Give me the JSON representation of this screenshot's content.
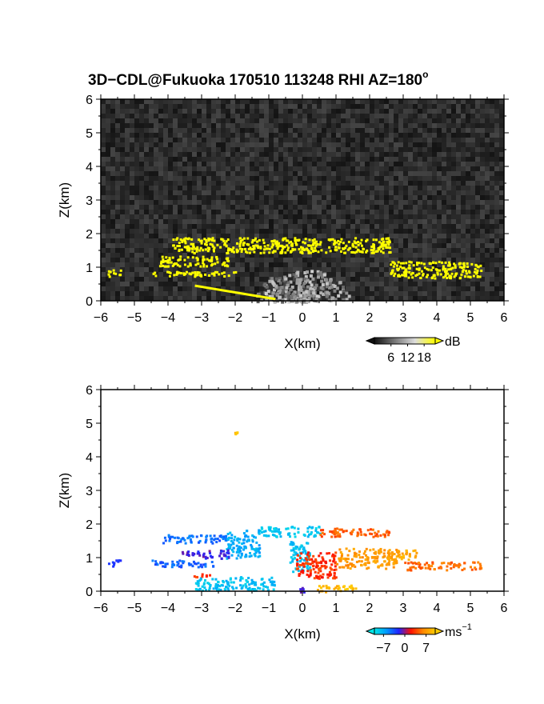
{
  "title": {
    "main": "3D−CDL@Fukuoka 170510 113248 RHI AZ=180",
    "sup": "o"
  },
  "chart_data": [
    {
      "type": "heatmap",
      "panel": "top",
      "field": "intensity",
      "xlabel": "X(km)",
      "ylabel": "Z(km)",
      "xlim": [
        -6,
        6
      ],
      "ylim": [
        0,
        6
      ],
      "xticks": [
        "−6",
        "−5",
        "−4",
        "−3",
        "−2",
        "−1",
        "0",
        "1",
        "2",
        "3",
        "4",
        "5",
        "6"
      ],
      "yticks": [
        "0",
        "1",
        "2",
        "3",
        "4",
        "5",
        "6"
      ],
      "background": "noise",
      "colorbar": {
        "unit": "dB",
        "ticks": [
          "6",
          "12",
          "18"
        ],
        "tick_values": [
          6,
          12,
          18
        ],
        "range": [
          0,
          22
        ],
        "colors": [
          "#111111",
          "#777777",
          "#dddddd",
          "#ffff00"
        ]
      },
      "features": [
        {
          "shape": "band",
          "x0": -4.0,
          "x1": 2.6,
          "z0": 1.45,
          "z1": 1.9,
          "value": 22
        },
        {
          "shape": "band",
          "x0": -4.3,
          "x1": -2.2,
          "z0": 1.05,
          "z1": 1.35,
          "value": 22
        },
        {
          "shape": "band",
          "x0": 2.6,
          "x1": 5.3,
          "z0": 0.7,
          "z1": 1.2,
          "value": 22
        },
        {
          "shape": "band",
          "x0": -5.8,
          "x1": -5.4,
          "z0": 0.75,
          "z1": 0.95,
          "value": 22
        },
        {
          "shape": "band",
          "x0": -4.5,
          "x1": -2.0,
          "z0": 0.75,
          "z1": 0.9,
          "value": 22
        },
        {
          "shape": "line",
          "x0": -3.2,
          "x1": -0.8,
          "z0": 0.45,
          "z1": 0.05,
          "value": 22
        }
      ]
    },
    {
      "type": "heatmap",
      "panel": "bottom",
      "field": "velocity",
      "xlabel": "X(km)",
      "ylabel": "Z(km)",
      "xlim": [
        -6,
        6
      ],
      "ylim": [
        0,
        6
      ],
      "xticks": [
        "−6",
        "−5",
        "−4",
        "−3",
        "−2",
        "−1",
        "0",
        "1",
        "2",
        "3",
        "4",
        "5",
        "6"
      ],
      "yticks": [
        "0",
        "1",
        "2",
        "3",
        "4",
        "5",
        "6"
      ],
      "colorbar": {
        "unit": "ms",
        "unit_sup": "−1",
        "ticks": [
          "−7",
          "0",
          "7"
        ],
        "tick_values": [
          -7,
          0,
          7
        ],
        "range": [
          -10,
          10
        ],
        "colors": [
          "#00e5e5",
          "#0099ff",
          "#2222ff",
          "#ff1100",
          "#ff8800",
          "#ffcc00"
        ]
      },
      "features": [
        {
          "shape": "band",
          "x0": -1.3,
          "x1": 0.5,
          "z0": 1.65,
          "z1": 1.95,
          "value": -8.5
        },
        {
          "shape": "band",
          "x0": 0.5,
          "x1": 2.6,
          "z0": 1.65,
          "z1": 1.9,
          "value": 4.5
        },
        {
          "shape": "band",
          "x0": -4.2,
          "x1": -2.2,
          "z0": 1.45,
          "z1": 1.7,
          "value": -4.5
        },
        {
          "shape": "band",
          "x0": -2.3,
          "x1": -1.3,
          "z0": 1.0,
          "z1": 1.85,
          "value": -7.0
        },
        {
          "shape": "band",
          "x0": -3.6,
          "x1": -2.2,
          "z0": 1.0,
          "z1": 1.25,
          "value": -1.5
        },
        {
          "shape": "band",
          "x0": -4.5,
          "x1": -2.6,
          "z0": 0.75,
          "z1": 0.95,
          "value": -4.0
        },
        {
          "shape": "band",
          "x0": -5.8,
          "x1": -5.4,
          "z0": 0.75,
          "z1": 0.95,
          "value": -2.0
        },
        {
          "shape": "band",
          "x0": -0.4,
          "x1": 0.2,
          "z0": 0.6,
          "z1": 1.5,
          "value": -8.0
        },
        {
          "shape": "band",
          "x0": -0.2,
          "x1": 1.0,
          "z0": 0.4,
          "z1": 1.2,
          "value": 3.0
        },
        {
          "shape": "band",
          "x0": 1.0,
          "x1": 2.8,
          "z0": 0.7,
          "z1": 1.3,
          "value": 7.0
        },
        {
          "shape": "band",
          "x0": 2.5,
          "x1": 3.4,
          "z0": 0.95,
          "z1": 1.25,
          "value": 8.0
        },
        {
          "shape": "band",
          "x0": 3.0,
          "x1": 5.3,
          "z0": 0.65,
          "z1": 0.9,
          "value": 5.0
        },
        {
          "shape": "band",
          "x0": -3.2,
          "x1": -0.8,
          "z0": 0.05,
          "z1": 0.45,
          "value": -8.0
        },
        {
          "shape": "band",
          "x0": -3.3,
          "x1": -2.7,
          "z0": 0.45,
          "z1": 0.55,
          "value": 3.5
        },
        {
          "shape": "band",
          "x0": -0.1,
          "x1": 0.2,
          "z0": 0.0,
          "z1": 0.15,
          "value": -1.0
        },
        {
          "shape": "band",
          "x0": 0.4,
          "x1": 1.6,
          "z0": 0.0,
          "z1": 0.2,
          "value": 9.0
        },
        {
          "shape": "band",
          "x0": -2.05,
          "x1": -1.95,
          "z0": 4.7,
          "z1": 4.78,
          "value": 9.0
        }
      ]
    }
  ]
}
